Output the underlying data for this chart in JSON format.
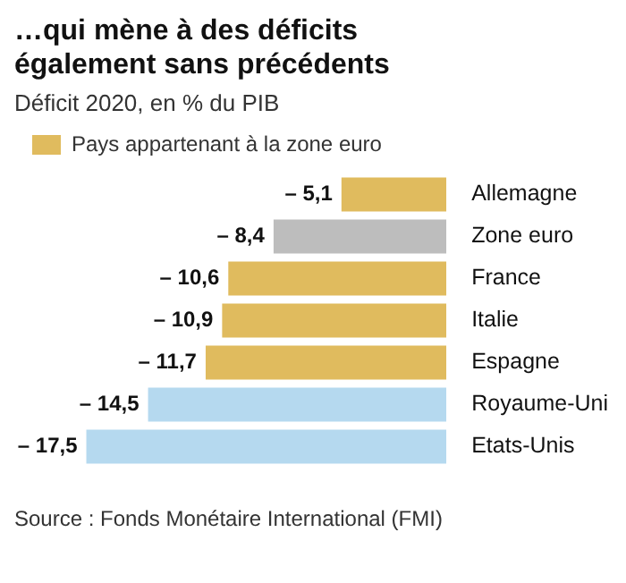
{
  "chart_data": {
    "type": "bar",
    "orientation": "horizontal",
    "title": "…qui mène à des déficits également sans précédents",
    "subtitle": "Déficit 2020, en % du PIB",
    "categories": [
      "Allemagne",
      "Zone euro",
      "France",
      "Italie",
      "Espagne",
      "Royaume-Uni",
      "Etats-Unis"
    ],
    "series": [
      {
        "name": "Pays appartenant à la zone euro",
        "color": "#e0bb5e",
        "values": [
          -5.1,
          null,
          -10.6,
          -10.9,
          -11.7,
          null,
          null
        ],
        "value_labels": [
          "– 5,1",
          null,
          "– 10,6",
          "– 10,9",
          "– 11,7",
          null,
          null
        ]
      },
      {
        "color": "#bdbdbd",
        "values": [
          null,
          -8.4,
          null,
          null,
          null,
          null,
          null
        ],
        "value_labels": [
          null,
          "– 8,4",
          null,
          null,
          null,
          null,
          null
        ]
      },
      {
        "color": "#b5d9ef",
        "values": [
          null,
          null,
          null,
          null,
          null,
          -14.5,
          -17.5
        ],
        "value_labels": [
          null,
          null,
          null,
          null,
          null,
          "– 14,5",
          "– 17,5"
        ]
      }
    ],
    "legend": "top left",
    "tick_labels": "y",
    "annotations": [
      "Source : Fonds Monétaire International (FMI)"
    ]
  }
}
